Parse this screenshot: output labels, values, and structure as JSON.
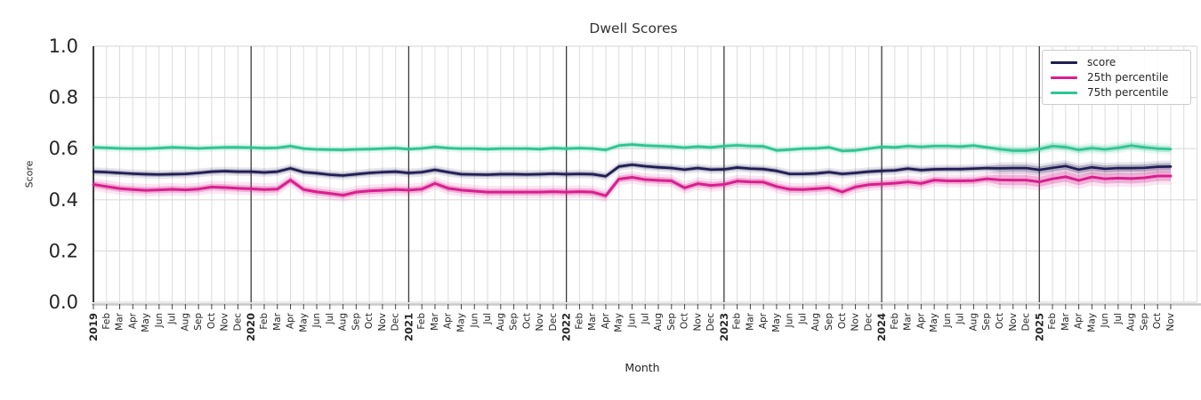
{
  "chart_data": {
    "type": "line",
    "title": "Dwell Scores",
    "xlabel": "Month",
    "ylabel": "Score",
    "ylim": [
      0.0,
      1.0
    ],
    "yticks": [
      "0.0",
      "0.2",
      "0.4",
      "0.6",
      "0.8",
      "1.0"
    ],
    "grid": true,
    "legend_position": "upper right",
    "months_extent": 84,
    "year_boundary_indices": [
      12,
      24,
      36,
      48,
      60,
      72
    ],
    "x_labels": [
      "2019",
      "Feb",
      "Mar",
      "Apr",
      "May",
      "Jun",
      "Jul",
      "Aug",
      "Sep",
      "Oct",
      "Nov",
      "Dec",
      "2020",
      "Feb",
      "Mar",
      "Apr",
      "May",
      "Jun",
      "Jul",
      "Aug",
      "Sep",
      "Oct",
      "Nov",
      "Dec",
      "2021",
      "Feb",
      "Mar",
      "Apr",
      "May",
      "Jun",
      "Jul",
      "Aug",
      "Sep",
      "Oct",
      "Nov",
      "Dec",
      "2022",
      "Feb",
      "Mar",
      "Apr",
      "May",
      "Jun",
      "Jul",
      "Aug",
      "Sep",
      "Oct",
      "Nov",
      "Dec",
      "2023",
      "Feb",
      "Mar",
      "Apr",
      "May",
      "Jun",
      "Jul",
      "Aug",
      "Sep",
      "Oct",
      "Nov",
      "Dec",
      "2024",
      "Feb",
      "Mar",
      "Apr",
      "May",
      "Jun",
      "Jul",
      "Aug",
      "Sep",
      "Oct",
      "Nov",
      "Dec",
      "2025",
      "Feb",
      "Mar",
      "Apr",
      "May",
      "Jun",
      "Jul",
      "Aug",
      "Sep",
      "Oct",
      "Nov"
    ],
    "uncertainty_widen": {
      "from_index": 69,
      "inner_multiplier": 1.5,
      "outer_multiplier": 2.6
    },
    "series": [
      {
        "name": "score",
        "color": "#201d54",
        "band_half_width": 0.009,
        "values": [
          0.51,
          0.508,
          0.505,
          0.502,
          0.5,
          0.499,
          0.5,
          0.501,
          0.505,
          0.51,
          0.512,
          0.51,
          0.51,
          0.507,
          0.51,
          0.523,
          0.508,
          0.504,
          0.498,
          0.495,
          0.5,
          0.505,
          0.508,
          0.51,
          0.505,
          0.508,
          0.517,
          0.508,
          0.5,
          0.499,
          0.498,
          0.5,
          0.5,
          0.499,
          0.5,
          0.502,
          0.5,
          0.501,
          0.5,
          0.492,
          0.53,
          0.537,
          0.531,
          0.527,
          0.524,
          0.518,
          0.524,
          0.518,
          0.519,
          0.526,
          0.522,
          0.52,
          0.513,
          0.501,
          0.501,
          0.503,
          0.508,
          0.501,
          0.505,
          0.51,
          0.513,
          0.515,
          0.522,
          0.516,
          0.519,
          0.52,
          0.52,
          0.522,
          0.524,
          0.523,
          0.524,
          0.524,
          0.517,
          0.525,
          0.532,
          0.518,
          0.527,
          0.521,
          0.524,
          0.524,
          0.525,
          0.529,
          0.53
        ]
      },
      {
        "name": "25th percentile",
        "color": "#d81f8f",
        "band_half_width": 0.013,
        "values": [
          0.46,
          0.452,
          0.444,
          0.44,
          0.437,
          0.439,
          0.441,
          0.439,
          0.442,
          0.45,
          0.448,
          0.445,
          0.443,
          0.44,
          0.442,
          0.477,
          0.44,
          0.431,
          0.425,
          0.418,
          0.43,
          0.435,
          0.437,
          0.44,
          0.438,
          0.442,
          0.464,
          0.445,
          0.438,
          0.434,
          0.43,
          0.43,
          0.43,
          0.43,
          0.43,
          0.432,
          0.43,
          0.432,
          0.43,
          0.416,
          0.481,
          0.488,
          0.479,
          0.476,
          0.474,
          0.447,
          0.463,
          0.456,
          0.46,
          0.473,
          0.47,
          0.469,
          0.452,
          0.441,
          0.44,
          0.443,
          0.447,
          0.431,
          0.45,
          0.459,
          0.462,
          0.465,
          0.47,
          0.464,
          0.477,
          0.474,
          0.474,
          0.475,
          0.482,
          0.478,
          0.477,
          0.477,
          0.47,
          0.482,
          0.49,
          0.476,
          0.489,
          0.482,
          0.485,
          0.483,
          0.486,
          0.493,
          0.493
        ]
      },
      {
        "name": "75th percentile",
        "color": "#2ec492",
        "band_half_width": 0.008,
        "values": [
          0.605,
          0.603,
          0.601,
          0.6,
          0.6,
          0.602,
          0.605,
          0.603,
          0.601,
          0.603,
          0.605,
          0.605,
          0.604,
          0.602,
          0.603,
          0.61,
          0.6,
          0.597,
          0.596,
          0.595,
          0.597,
          0.598,
          0.6,
          0.602,
          0.598,
          0.601,
          0.607,
          0.602,
          0.6,
          0.6,
          0.598,
          0.6,
          0.6,
          0.6,
          0.598,
          0.602,
          0.6,
          0.602,
          0.6,
          0.595,
          0.612,
          0.616,
          0.612,
          0.61,
          0.608,
          0.604,
          0.608,
          0.605,
          0.61,
          0.613,
          0.61,
          0.609,
          0.593,
          0.596,
          0.6,
          0.601,
          0.605,
          0.591,
          0.593,
          0.6,
          0.607,
          0.605,
          0.61,
          0.607,
          0.61,
          0.61,
          0.608,
          0.612,
          0.605,
          0.598,
          0.592,
          0.592,
          0.598,
          0.61,
          0.606,
          0.595,
          0.602,
          0.597,
          0.603,
          0.612,
          0.605,
          0.6,
          0.598
        ]
      }
    ],
    "colors": {
      "gridline": "#dcdcdc",
      "year_line": "#3c3c3c",
      "axis_text": "#262626",
      "spine_left": "#262626",
      "spine_bottom": "#c9c9c9",
      "title_text": "#333333"
    }
  }
}
